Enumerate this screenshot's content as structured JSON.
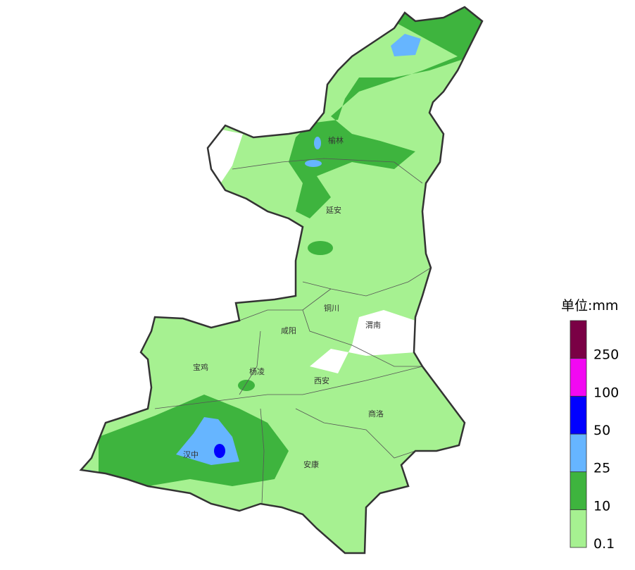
{
  "legend": {
    "title": "单位:mm",
    "colors": [
      "#a6f191",
      "#3eb43e",
      "#66b5ff",
      "#0000ff",
      "#f208f2",
      "#7a0045"
    ],
    "labels": [
      "0.1",
      "10",
      "25",
      "50",
      "100",
      "250"
    ]
  },
  "cities": [
    {
      "name": "榆林"
    },
    {
      "name": "延安"
    },
    {
      "name": "铜川"
    },
    {
      "name": "渭南"
    },
    {
      "name": "咸阳"
    },
    {
      "name": "宝鸡"
    },
    {
      "name": "杨凌"
    },
    {
      "name": "西安"
    },
    {
      "name": "商洛"
    },
    {
      "name": "汉中"
    },
    {
      "name": "安康"
    }
  ]
}
